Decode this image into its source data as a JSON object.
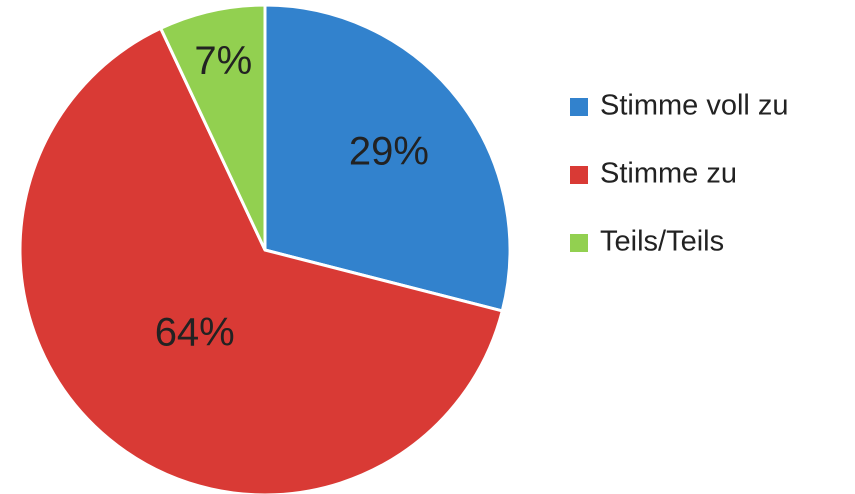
{
  "chart_data": {
    "type": "pie",
    "categories": [
      "Stimme voll zu",
      "Stimme zu",
      "Teils/Teils"
    ],
    "values": [
      29,
      64,
      7
    ],
    "value_labels": [
      "29%",
      "64%",
      "7%"
    ],
    "colors": [
      "#3282cd",
      "#d93a35",
      "#92d050"
    ],
    "legend": "right"
  }
}
